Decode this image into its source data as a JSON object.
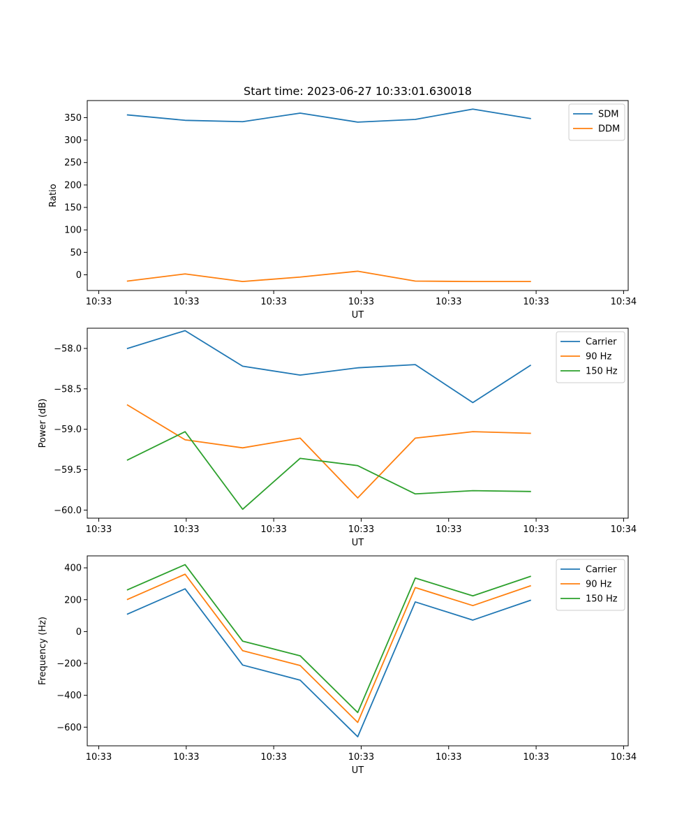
{
  "title": "Start time: 2023-06-27 10:33:01.630018",
  "colors": {
    "blue": "#1f77b4",
    "orange": "#ff7f0e",
    "green": "#2ca02c"
  },
  "chart_data": [
    {
      "type": "line",
      "title": "Start time: 2023-06-27 10:33:01.630018",
      "xlabel": "UT",
      "ylabel": "Ratio",
      "x": [
        0.75,
        1.25,
        1.75,
        2.25,
        2.75,
        3.25,
        3.75,
        4.25
      ],
      "xlim": [
        0.4,
        5.1
      ],
      "xticks": [
        0.5,
        1.26,
        2.02,
        2.78,
        3.54,
        4.3,
        5.06
      ],
      "xticklabels": [
        "10:33",
        "10:33",
        "10:33",
        "10:33",
        "10:33",
        "10:33",
        "10:34"
      ],
      "ylim": [
        -35,
        388
      ],
      "yticks": [
        0,
        50,
        100,
        150,
        200,
        250,
        300,
        350
      ],
      "yticklabels": [
        "0",
        "50",
        "100",
        "150",
        "200",
        "250",
        "300",
        "350"
      ],
      "legend": "top-right",
      "series": [
        {
          "name": "SDM",
          "color": "#1f77b4",
          "values": [
            356,
            344,
            341,
            360,
            340,
            346,
            369,
            348
          ]
        },
        {
          "name": "DDM",
          "color": "#ff7f0e",
          "values": [
            -14,
            2,
            -15,
            -5,
            8,
            -14,
            -15,
            -15
          ]
        }
      ]
    },
    {
      "type": "line",
      "xlabel": "UT",
      "ylabel": "Power (dB)",
      "x": [
        0.75,
        1.25,
        1.75,
        2.25,
        2.75,
        3.25,
        3.75,
        4.25
      ],
      "xlim": [
        0.4,
        5.1
      ],
      "xticks": [
        0.5,
        1.26,
        2.02,
        2.78,
        3.54,
        4.3,
        5.06
      ],
      "xticklabels": [
        "10:33",
        "10:33",
        "10:33",
        "10:33",
        "10:33",
        "10:33",
        "10:34"
      ],
      "ylim": [
        -60.1,
        -57.75
      ],
      "yticks": [
        -60.0,
        -59.5,
        -59.0,
        -58.5,
        -58.0
      ],
      "yticklabels": [
        "−60.0",
        "−59.5",
        "−59.0",
        "−58.5",
        "−58.0"
      ],
      "legend": "top-right",
      "series": [
        {
          "name": "Carrier",
          "color": "#1f77b4",
          "values": [
            -58.0,
            -57.78,
            -58.22,
            -58.33,
            -58.24,
            -58.2,
            -58.67,
            -58.21
          ]
        },
        {
          "name": "90 Hz",
          "color": "#ff7f0e",
          "values": [
            -58.7,
            -59.13,
            -59.23,
            -59.11,
            -59.85,
            -59.11,
            -59.03,
            -59.05
          ]
        },
        {
          "name": "150 Hz",
          "color": "#2ca02c",
          "values": [
            -59.38,
            -59.03,
            -59.99,
            -59.36,
            -59.45,
            -59.8,
            -59.76,
            -59.77
          ]
        }
      ]
    },
    {
      "type": "line",
      "xlabel": "UT",
      "ylabel": "Frequency (Hz)",
      "x": [
        0.75,
        1.25,
        1.75,
        2.25,
        2.75,
        3.25,
        3.75,
        4.25
      ],
      "xlim": [
        0.4,
        5.1
      ],
      "xticks": [
        0.5,
        1.26,
        2.02,
        2.78,
        3.54,
        4.3,
        5.06
      ],
      "xticklabels": [
        "10:33",
        "10:33",
        "10:33",
        "10:33",
        "10:33",
        "10:33",
        "10:34"
      ],
      "ylim": [
        -717,
        475
      ],
      "yticks": [
        -600,
        -400,
        -200,
        0,
        200,
        400
      ],
      "yticklabels": [
        "−600",
        "−400",
        "−200",
        "0",
        "200",
        "400"
      ],
      "legend": "top-right",
      "series": [
        {
          "name": "Carrier",
          "color": "#1f77b4",
          "values": [
            110,
            268,
            -210,
            -305,
            -660,
            186,
            72,
            196
          ]
        },
        {
          "name": "90 Hz",
          "color": "#ff7f0e",
          "values": [
            202,
            360,
            -120,
            -213,
            -570,
            276,
            163,
            287
          ]
        },
        {
          "name": "150 Hz",
          "color": "#2ca02c",
          "values": [
            262,
            420,
            -60,
            -152,
            -508,
            336,
            224,
            346
          ]
        }
      ]
    }
  ]
}
